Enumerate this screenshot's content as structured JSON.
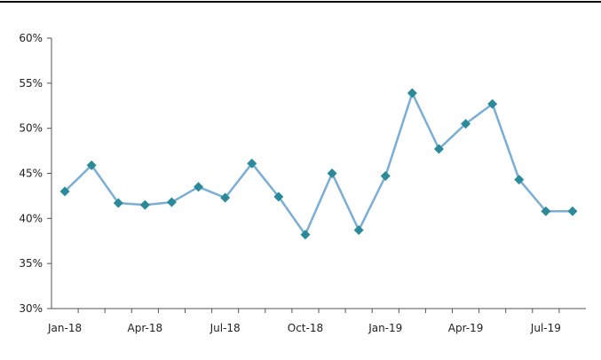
{
  "chart_data": {
    "type": "line",
    "title": "",
    "xlabel": "",
    "ylabel": "",
    "x": [
      "Jan-18",
      "Feb-18",
      "Mar-18",
      "Apr-18",
      "May-18",
      "Jun-18",
      "Jul-18",
      "Aug-18",
      "Sep-18",
      "Oct-18",
      "Nov-18",
      "Dec-18",
      "Jan-19",
      "Feb-19",
      "Mar-19",
      "Apr-19",
      "May-19",
      "Jun-19",
      "Jul-19",
      "Aug-19"
    ],
    "x_tick_labels": [
      "Jan-18",
      "Apr-18",
      "Jul-18",
      "Oct-18",
      "Jan-19",
      "Apr-19",
      "Jul-19"
    ],
    "y_tick_labels": [
      "60%",
      "55%",
      "50%",
      "45%",
      "40%",
      "35%",
      "30%"
    ],
    "ylim": [
      30,
      60
    ],
    "y_unit": "%",
    "grid": false,
    "legend": "none",
    "series": [
      {
        "values": [
          43.0,
          45.9,
          41.7,
          41.5,
          41.8,
          43.5,
          42.3,
          46.1,
          42.4,
          38.2,
          45.0,
          38.7,
          44.7,
          53.9,
          47.7,
          50.5,
          52.7,
          44.3,
          40.8,
          40.8
        ],
        "line_color": "#7aaed6",
        "marker_color": "#2a8a99",
        "marker": "diamond"
      }
    ]
  }
}
